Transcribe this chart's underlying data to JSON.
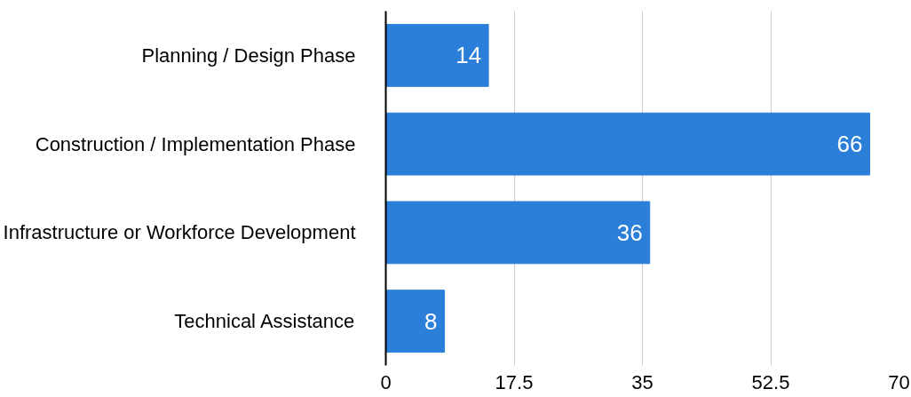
{
  "chart_data": {
    "type": "bar",
    "orientation": "horizontal",
    "categories": [
      "Planning / Design Phase",
      "Construction / Implementation Phase",
      "Infrastructure or Workforce Development",
      "Technical Assistance"
    ],
    "values": [
      14,
      66,
      36,
      8
    ],
    "color": "#2b7fd9",
    "xlim": [
      0,
      70
    ],
    "xticks": [
      0,
      17.5,
      35,
      52.5,
      70
    ],
    "grid": "x",
    "data_labels": true
  }
}
